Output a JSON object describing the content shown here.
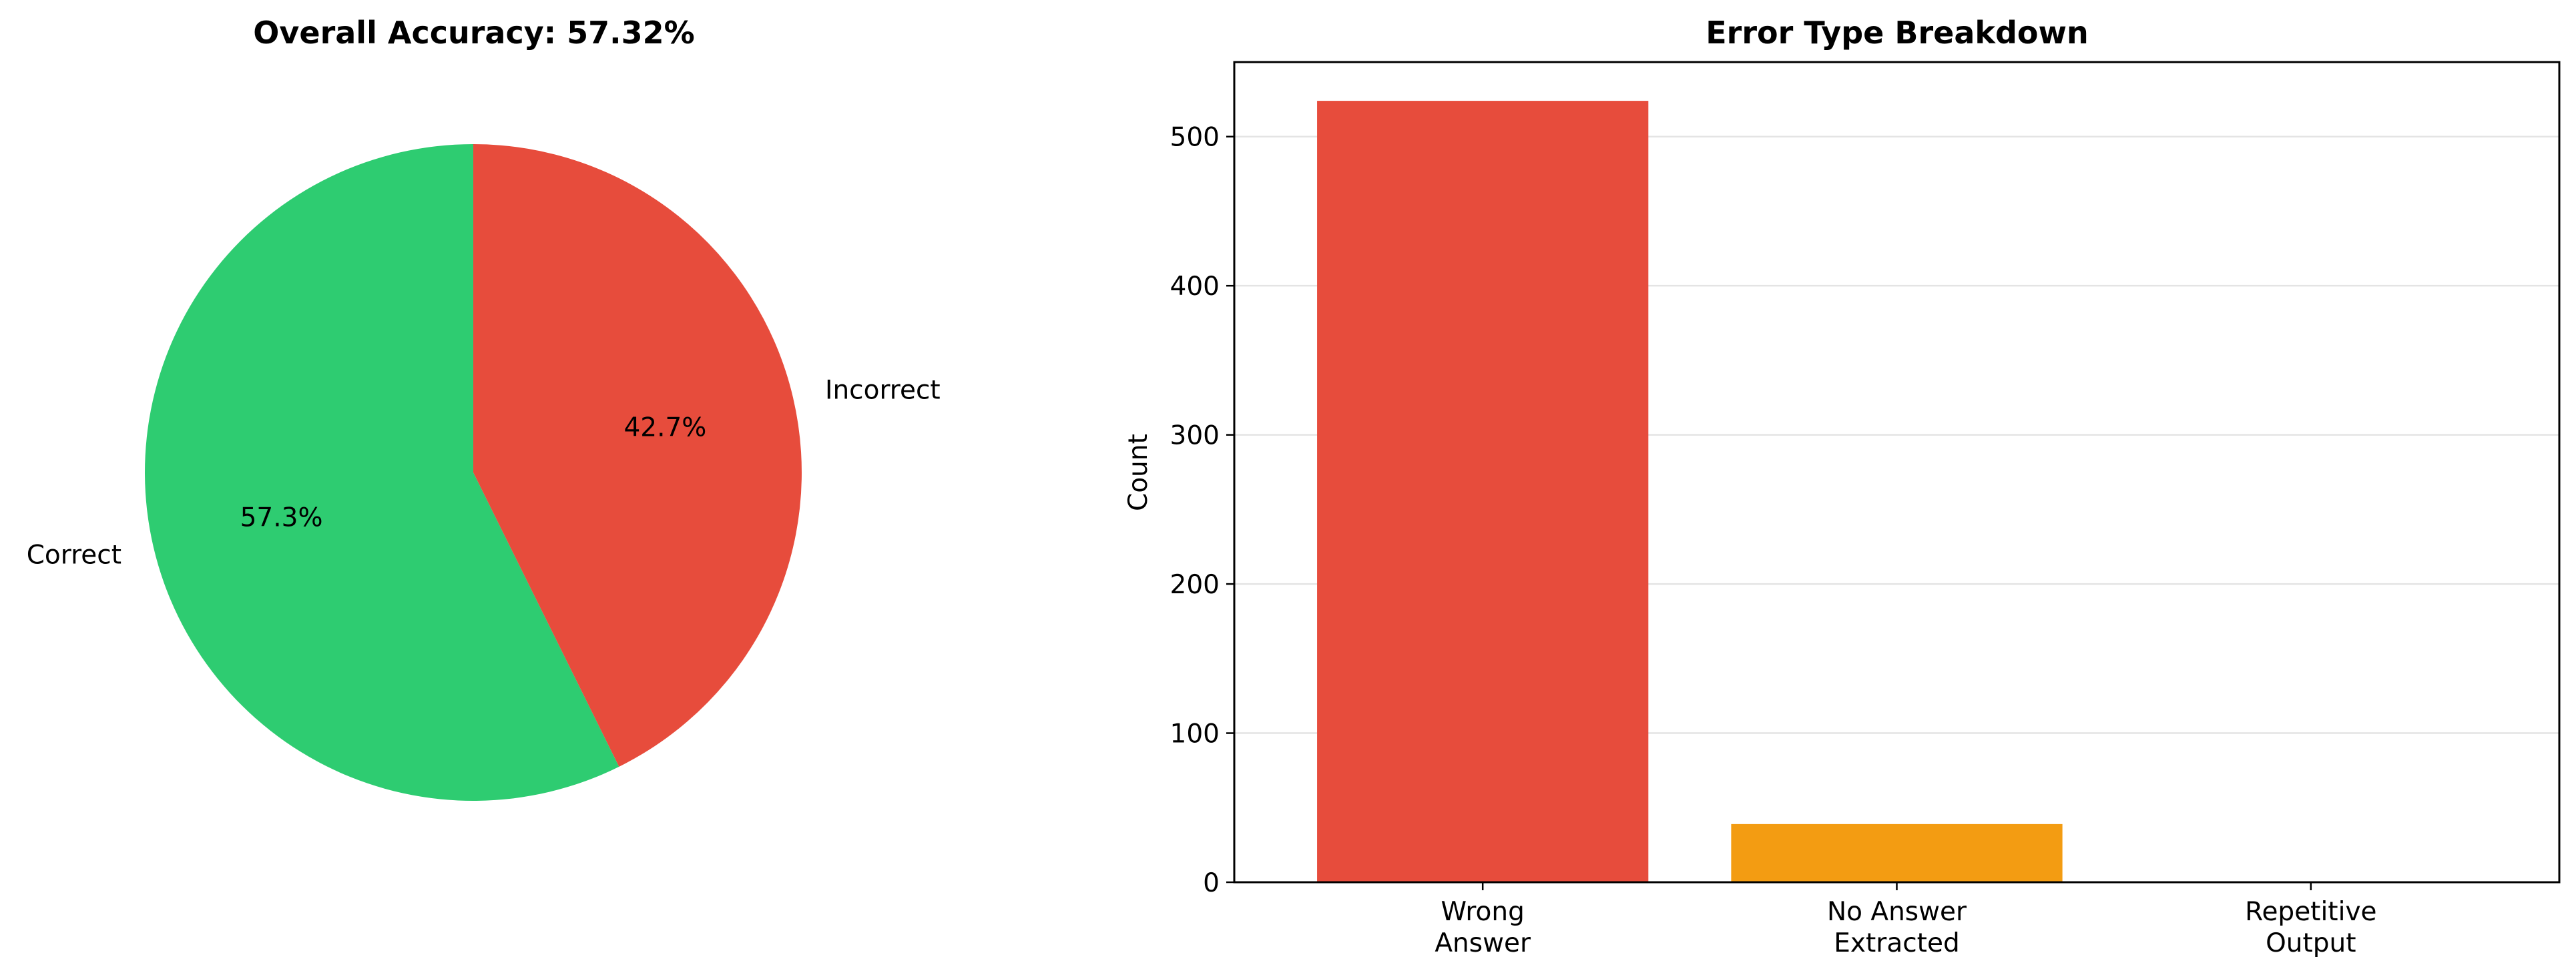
{
  "chart_data": [
    {
      "type": "pie",
      "title": "Overall Accuracy: 57.32%",
      "slices": [
        {
          "label": "Correct",
          "value": 57.32,
          "pct_label": "57.3%",
          "color": "#2ecc71"
        },
        {
          "label": "Incorrect",
          "value": 42.68,
          "pct_label": "42.7%",
          "color": "#e74c3c"
        }
      ]
    },
    {
      "type": "bar",
      "title": "Error Type Breakdown",
      "xlabel": "",
      "ylabel": "Count",
      "categories": [
        [
          "Wrong",
          "Answer"
        ],
        [
          "No Answer",
          "Extracted"
        ],
        [
          "Repetitive",
          "Output"
        ]
      ],
      "values": [
        524,
        39,
        0
      ],
      "colors": [
        "#e74c3c",
        "#f39c12",
        "#9b59b6"
      ],
      "ylim": [
        0,
        550
      ],
      "yticks": [
        0,
        100,
        200,
        300,
        400,
        500
      ],
      "grid": "y"
    }
  ]
}
